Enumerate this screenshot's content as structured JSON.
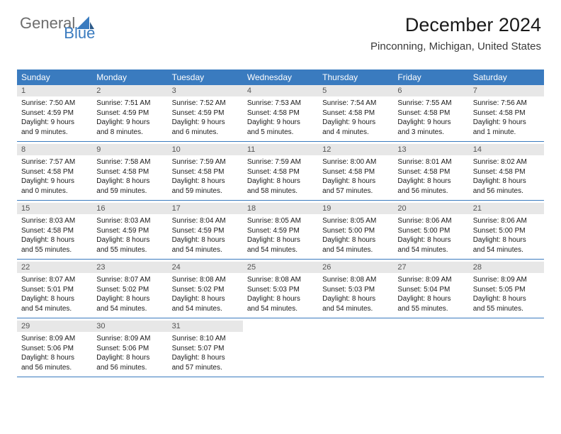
{
  "brand": {
    "general": "General",
    "blue": "Blue"
  },
  "title": "December 2024",
  "location": "Pinconning, Michigan, United States",
  "colors": {
    "header_bg": "#3a7bbf",
    "header_fg": "#ffffff",
    "daynum_bg": "#e7e7e7",
    "daynum_fg": "#555555",
    "text": "#1a1a1a",
    "rule": "#3a7bbf",
    "background": "#ffffff"
  },
  "weekdays": [
    "Sunday",
    "Monday",
    "Tuesday",
    "Wednesday",
    "Thursday",
    "Friday",
    "Saturday"
  ],
  "weeks": [
    [
      {
        "num": "1",
        "sunrise": "Sunrise: 7:50 AM",
        "sunset": "Sunset: 4:59 PM",
        "daylight": "Daylight: 9 hours and 9 minutes."
      },
      {
        "num": "2",
        "sunrise": "Sunrise: 7:51 AM",
        "sunset": "Sunset: 4:59 PM",
        "daylight": "Daylight: 9 hours and 8 minutes."
      },
      {
        "num": "3",
        "sunrise": "Sunrise: 7:52 AM",
        "sunset": "Sunset: 4:59 PM",
        "daylight": "Daylight: 9 hours and 6 minutes."
      },
      {
        "num": "4",
        "sunrise": "Sunrise: 7:53 AM",
        "sunset": "Sunset: 4:58 PM",
        "daylight": "Daylight: 9 hours and 5 minutes."
      },
      {
        "num": "5",
        "sunrise": "Sunrise: 7:54 AM",
        "sunset": "Sunset: 4:58 PM",
        "daylight": "Daylight: 9 hours and 4 minutes."
      },
      {
        "num": "6",
        "sunrise": "Sunrise: 7:55 AM",
        "sunset": "Sunset: 4:58 PM",
        "daylight": "Daylight: 9 hours and 3 minutes."
      },
      {
        "num": "7",
        "sunrise": "Sunrise: 7:56 AM",
        "sunset": "Sunset: 4:58 PM",
        "daylight": "Daylight: 9 hours and 1 minute."
      }
    ],
    [
      {
        "num": "8",
        "sunrise": "Sunrise: 7:57 AM",
        "sunset": "Sunset: 4:58 PM",
        "daylight": "Daylight: 9 hours and 0 minutes."
      },
      {
        "num": "9",
        "sunrise": "Sunrise: 7:58 AM",
        "sunset": "Sunset: 4:58 PM",
        "daylight": "Daylight: 8 hours and 59 minutes."
      },
      {
        "num": "10",
        "sunrise": "Sunrise: 7:59 AM",
        "sunset": "Sunset: 4:58 PM",
        "daylight": "Daylight: 8 hours and 59 minutes."
      },
      {
        "num": "11",
        "sunrise": "Sunrise: 7:59 AM",
        "sunset": "Sunset: 4:58 PM",
        "daylight": "Daylight: 8 hours and 58 minutes."
      },
      {
        "num": "12",
        "sunrise": "Sunrise: 8:00 AM",
        "sunset": "Sunset: 4:58 PM",
        "daylight": "Daylight: 8 hours and 57 minutes."
      },
      {
        "num": "13",
        "sunrise": "Sunrise: 8:01 AM",
        "sunset": "Sunset: 4:58 PM",
        "daylight": "Daylight: 8 hours and 56 minutes."
      },
      {
        "num": "14",
        "sunrise": "Sunrise: 8:02 AM",
        "sunset": "Sunset: 4:58 PM",
        "daylight": "Daylight: 8 hours and 56 minutes."
      }
    ],
    [
      {
        "num": "15",
        "sunrise": "Sunrise: 8:03 AM",
        "sunset": "Sunset: 4:58 PM",
        "daylight": "Daylight: 8 hours and 55 minutes."
      },
      {
        "num": "16",
        "sunrise": "Sunrise: 8:03 AM",
        "sunset": "Sunset: 4:59 PM",
        "daylight": "Daylight: 8 hours and 55 minutes."
      },
      {
        "num": "17",
        "sunrise": "Sunrise: 8:04 AM",
        "sunset": "Sunset: 4:59 PM",
        "daylight": "Daylight: 8 hours and 54 minutes."
      },
      {
        "num": "18",
        "sunrise": "Sunrise: 8:05 AM",
        "sunset": "Sunset: 4:59 PM",
        "daylight": "Daylight: 8 hours and 54 minutes."
      },
      {
        "num": "19",
        "sunrise": "Sunrise: 8:05 AM",
        "sunset": "Sunset: 5:00 PM",
        "daylight": "Daylight: 8 hours and 54 minutes."
      },
      {
        "num": "20",
        "sunrise": "Sunrise: 8:06 AM",
        "sunset": "Sunset: 5:00 PM",
        "daylight": "Daylight: 8 hours and 54 minutes."
      },
      {
        "num": "21",
        "sunrise": "Sunrise: 8:06 AM",
        "sunset": "Sunset: 5:00 PM",
        "daylight": "Daylight: 8 hours and 54 minutes."
      }
    ],
    [
      {
        "num": "22",
        "sunrise": "Sunrise: 8:07 AM",
        "sunset": "Sunset: 5:01 PM",
        "daylight": "Daylight: 8 hours and 54 minutes."
      },
      {
        "num": "23",
        "sunrise": "Sunrise: 8:07 AM",
        "sunset": "Sunset: 5:02 PM",
        "daylight": "Daylight: 8 hours and 54 minutes."
      },
      {
        "num": "24",
        "sunrise": "Sunrise: 8:08 AM",
        "sunset": "Sunset: 5:02 PM",
        "daylight": "Daylight: 8 hours and 54 minutes."
      },
      {
        "num": "25",
        "sunrise": "Sunrise: 8:08 AM",
        "sunset": "Sunset: 5:03 PM",
        "daylight": "Daylight: 8 hours and 54 minutes."
      },
      {
        "num": "26",
        "sunrise": "Sunrise: 8:08 AM",
        "sunset": "Sunset: 5:03 PM",
        "daylight": "Daylight: 8 hours and 54 minutes."
      },
      {
        "num": "27",
        "sunrise": "Sunrise: 8:09 AM",
        "sunset": "Sunset: 5:04 PM",
        "daylight": "Daylight: 8 hours and 55 minutes."
      },
      {
        "num": "28",
        "sunrise": "Sunrise: 8:09 AM",
        "sunset": "Sunset: 5:05 PM",
        "daylight": "Daylight: 8 hours and 55 minutes."
      }
    ],
    [
      {
        "num": "29",
        "sunrise": "Sunrise: 8:09 AM",
        "sunset": "Sunset: 5:06 PM",
        "daylight": "Daylight: 8 hours and 56 minutes."
      },
      {
        "num": "30",
        "sunrise": "Sunrise: 8:09 AM",
        "sunset": "Sunset: 5:06 PM",
        "daylight": "Daylight: 8 hours and 56 minutes."
      },
      {
        "num": "31",
        "sunrise": "Sunrise: 8:10 AM",
        "sunset": "Sunset: 5:07 PM",
        "daylight": "Daylight: 8 hours and 57 minutes."
      },
      null,
      null,
      null,
      null
    ]
  ]
}
